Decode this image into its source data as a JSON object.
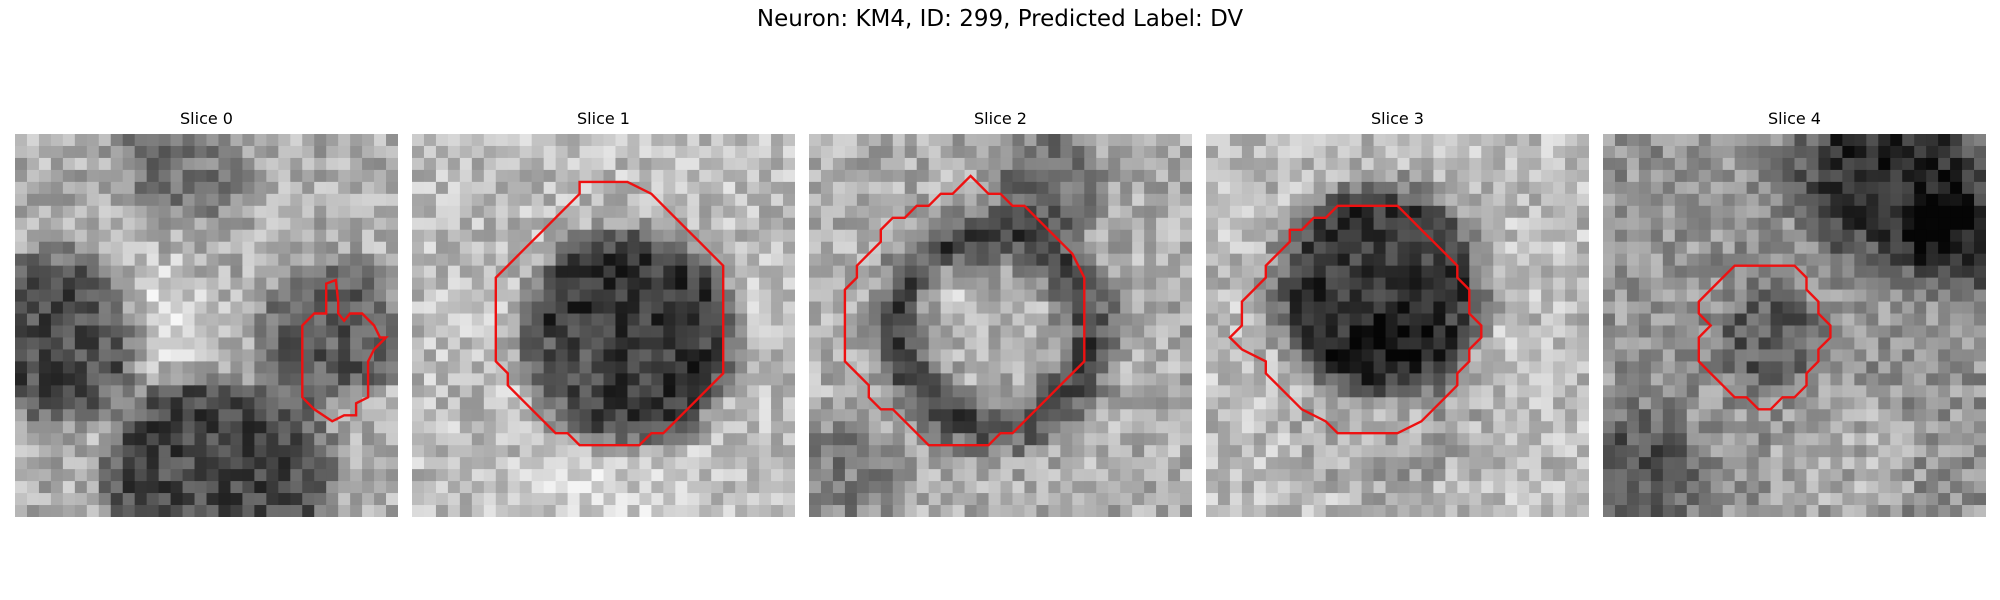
{
  "figure": {
    "title": "Neuron: KM4, ID: 299, Predicted Label: DV",
    "contour_color": "#ee1111"
  },
  "panels": [
    {
      "title": "Slice 0",
      "image_description": "grayscale cell patch with small red contour at right edge"
    },
    {
      "title": "Slice 1",
      "image_description": "grayscale patch, dark round nucleus inside red octagonal contour"
    },
    {
      "title": "Slice 2",
      "image_description": "grayscale patch, dark ring nucleus inside large red contour"
    },
    {
      "title": "Slice 3",
      "image_description": "grayscale patch, dark nucleus inside red contour"
    },
    {
      "title": "Slice 4",
      "image_description": "grayscale patch, small red contour at center"
    }
  ]
}
